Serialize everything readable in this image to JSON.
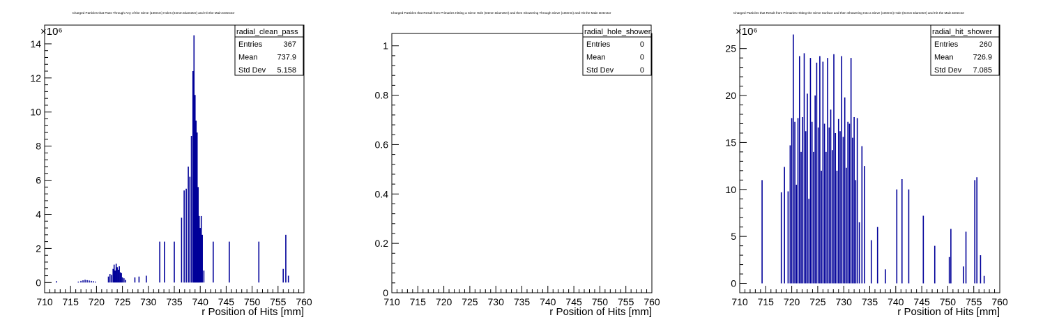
{
  "chart_data": [
    {
      "type": "bar",
      "title": "Charged Particles that Pass Through Any of the Sieve (100mm) Holes (04mm Diameter) and Hit the Main Detector",
      "xlabel": "r Position of Hits [mm]",
      "ylabel": "",
      "exponent": "×10⁶",
      "xlim": [
        710,
        760
      ],
      "ylim": [
        -0.6,
        15.1
      ],
      "yticks": [
        0,
        2,
        4,
        6,
        8,
        10,
        12,
        14
      ],
      "xticks": [
        710,
        715,
        720,
        725,
        730,
        735,
        740,
        745,
        750,
        755,
        760
      ],
      "color": "#000099",
      "stats": {
        "name": "radial_clean_pass",
        "Entries": "367",
        "Mean": "737.9",
        "Std Dev": "5.158"
      },
      "series": [
        {
          "x": [
            712.3,
            716.5,
            717.0,
            717.4,
            717.8,
            718.2,
            718.6,
            719.0,
            719.4,
            719.8,
            722.3,
            722.6,
            722.9,
            723.2,
            723.4,
            723.6,
            723.8,
            724.0,
            724.2,
            724.4,
            724.6,
            724.8,
            725.0,
            725.3,
            725.6,
            727.4,
            728.2,
            729.6,
            732.2,
            733.1,
            735.0,
            736.4,
            736.9,
            737.3,
            737.7,
            738.0,
            738.3,
            738.6,
            738.8,
            739.0,
            739.2,
            739.4,
            739.6,
            739.8,
            740.0,
            740.2,
            740.4,
            740.7,
            742.5,
            745.6,
            751.3,
            756.0,
            756.5,
            757.0
          ],
          "values": [
            0.08,
            0.05,
            0.1,
            0.13,
            0.16,
            0.14,
            0.12,
            0.1,
            0.08,
            0.05,
            0.35,
            0.5,
            0.45,
            0.8,
            1.05,
            0.7,
            1.1,
            0.9,
            0.75,
            0.95,
            0.6,
            0.55,
            0.3,
            0.25,
            0.15,
            0.3,
            0.35,
            0.4,
            2.4,
            2.4,
            2.4,
            3.8,
            5.4,
            5.5,
            6.8,
            6.2,
            8.6,
            12.4,
            14.5,
            11.0,
            9.5,
            8.8,
            5.6,
            3.9,
            3.2,
            3.9,
            2.8,
            0.7,
            2.4,
            2.4,
            2.4,
            0.8,
            2.8,
            0.4
          ]
        }
      ]
    },
    {
      "type": "bar",
      "title": "Charged Particles that Result from Primaries Hitting a Sieve Hole (04mm Diameter) and then Showering Through Sieve (100mm) and Hit the Main Detector",
      "xlabel": "r Position of Hits [mm]",
      "ylabel": "",
      "exponent": "",
      "xlim": [
        710,
        760
      ],
      "ylim": [
        0,
        1.05
      ],
      "yticks": [
        0,
        0.2,
        0.4,
        0.6,
        0.8,
        1
      ],
      "xticks": [
        710,
        715,
        720,
        725,
        730,
        735,
        740,
        745,
        750,
        755,
        760
      ],
      "color": "#000099",
      "stats": {
        "name": "radial_hole_shower",
        "Entries": "0",
        "Mean": "0",
        "Std Dev": "0"
      },
      "series": [
        {
          "x": [],
          "values": []
        }
      ]
    },
    {
      "type": "bar",
      "title": "Charged Particles that Result from Primaries Hitting the Sieve Surface and then Showering Into a Sieve (100mm) Hole (04mm Diameter) and Hit the Main Detector",
      "xlabel": "r Position of Hits [mm]",
      "ylabel": "",
      "exponent": "×10⁶",
      "xlim": [
        710,
        760
      ],
      "ylim": [
        -1.0,
        27.5
      ],
      "yticks": [
        0,
        5,
        10,
        15,
        20,
        25
      ],
      "xticks": [
        710,
        715,
        720,
        725,
        730,
        735,
        740,
        745,
        750,
        755,
        760
      ],
      "color": "#000099",
      "stats": {
        "name": "radial_hit_shower",
        "Entries": "260",
        "Mean": "726.9",
        "Std Dev": "7.085"
      },
      "series": [
        {
          "x": [
            714.3,
            718.0,
            718.6,
            719.3,
            719.7,
            720.0,
            720.3,
            720.6,
            720.9,
            721.2,
            721.5,
            721.8,
            722.1,
            722.4,
            722.7,
            723.0,
            723.3,
            723.6,
            723.9,
            724.2,
            724.5,
            724.8,
            725.1,
            725.4,
            725.7,
            726.0,
            726.3,
            726.6,
            726.9,
            727.2,
            727.5,
            727.8,
            728.1,
            728.4,
            728.7,
            729.0,
            729.3,
            729.6,
            729.9,
            730.2,
            730.5,
            730.8,
            731.1,
            731.4,
            731.7,
            732.0,
            732.3,
            732.6,
            733.0,
            733.5,
            734.0,
            735.3,
            736.5,
            738.0,
            740.2,
            741.2,
            742.5,
            745.3,
            747.5,
            750.3,
            750.6,
            753.0,
            753.5,
            755.2,
            755.6,
            756.3,
            757.0
          ],
          "values": [
            11.0,
            9.7,
            12.4,
            9.8,
            14.7,
            17.6,
            26.5,
            17.2,
            10.5,
            17.6,
            24.2,
            14.0,
            17.7,
            24.5,
            16.2,
            20.2,
            9.0,
            24.0,
            17.2,
            14.0,
            20.0,
            23.5,
            16.6,
            24.2,
            12.0,
            23.6,
            17.0,
            14.0,
            24.0,
            16.6,
            18.5,
            14.2,
            24.4,
            16.0,
            12.0,
            17.5,
            16.2,
            24.2,
            15.6,
            19.8,
            12.3,
            17.2,
            17.0,
            24.0,
            15.5,
            17.7,
            11.0,
            17.6,
            6.5,
            14.6,
            12.5,
            4.6,
            6.0,
            1.5,
            10.0,
            11.1,
            10.0,
            7.2,
            4.0,
            2.8,
            5.8,
            1.8,
            5.5,
            11.0,
            11.3,
            3.0,
            0.8
          ]
        }
      ]
    }
  ]
}
